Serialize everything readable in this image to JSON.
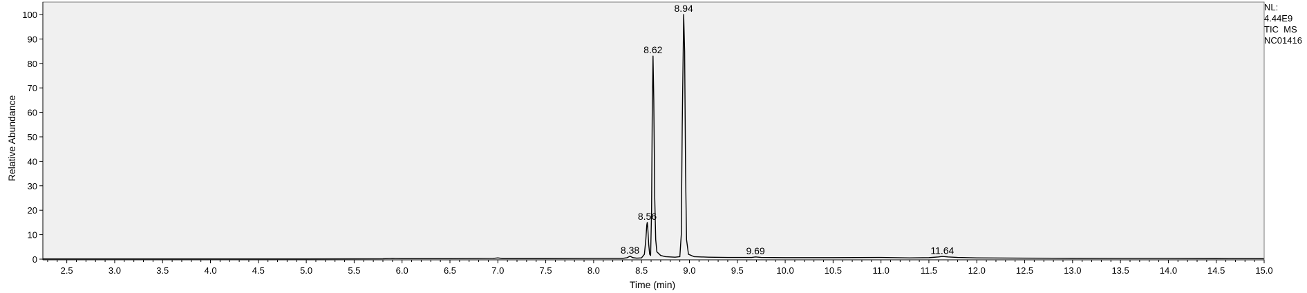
{
  "info_panel": {
    "nl_label": "NL:",
    "nl_value": "4.44E9",
    "scan_type": "TIC  MS",
    "sample_id": "NC01416"
  },
  "chart_data": {
    "type": "line",
    "xlabel": "Time (min)",
    "ylabel": "Relative Abundance",
    "xlim": [
      2.25,
      15.0
    ],
    "ylim": [
      0,
      100
    ],
    "xticks": [
      2.5,
      3.0,
      3.5,
      4.0,
      4.5,
      5.0,
      5.5,
      6.0,
      6.5,
      7.0,
      7.5,
      8.0,
      8.5,
      9.0,
      9.5,
      10.0,
      10.5,
      11.0,
      11.5,
      12.0,
      12.5,
      13.0,
      13.5,
      14.0,
      14.5,
      15.0
    ],
    "xtick_labels": [
      "2.5",
      "3.0",
      "3.5",
      "4.0",
      "4.5",
      "5.0",
      "5.5",
      "6.0",
      "6.5",
      "7.0",
      "7.5",
      "8.0",
      "8.5",
      "9.0",
      "9.5",
      "10.0",
      "10.5",
      "11.0",
      "11.5",
      "12.0",
      "12.5",
      "13.0",
      "13.5",
      "14.0",
      "14.5",
      "15.0"
    ],
    "yticks": [
      0,
      10,
      20,
      30,
      40,
      50,
      60,
      70,
      80,
      90,
      100
    ],
    "ytick_labels": [
      "0",
      "10",
      "20",
      "30",
      "40",
      "50",
      "60",
      "70",
      "80",
      "90",
      "100"
    ],
    "grid": false,
    "background": "#f0f0f0",
    "line_color": "#000000",
    "peaks": [
      {
        "label": "8.38",
        "x": 8.38,
        "y": 1.2
      },
      {
        "label": "8.56",
        "x": 8.56,
        "y": 15
      },
      {
        "label": "8.62",
        "x": 8.62,
        "y": 83
      },
      {
        "label": "8.94",
        "x": 8.94,
        "y": 100
      },
      {
        "label": "9.69",
        "x": 9.69,
        "y": 0.8
      },
      {
        "label": "11.64",
        "x": 11.64,
        "y": 1.0
      }
    ],
    "series": [
      {
        "values": [
          [
            2.25,
            0.1
          ],
          [
            3.0,
            0.1
          ],
          [
            4.0,
            0.1
          ],
          [
            5.0,
            0.1
          ],
          [
            5.8,
            0.15
          ],
          [
            5.9,
            0.3
          ],
          [
            6.0,
            0.2
          ],
          [
            6.5,
            0.2
          ],
          [
            6.95,
            0.3
          ],
          [
            7.0,
            0.5
          ],
          [
            7.05,
            0.25
          ],
          [
            7.5,
            0.25
          ],
          [
            8.0,
            0.3
          ],
          [
            8.3,
            0.3
          ],
          [
            8.35,
            0.6
          ],
          [
            8.38,
            1.2
          ],
          [
            8.41,
            0.6
          ],
          [
            8.45,
            0.4
          ],
          [
            8.5,
            0.5
          ],
          [
            8.53,
            2.0
          ],
          [
            8.545,
            8.0
          ],
          [
            8.555,
            14.0
          ],
          [
            8.56,
            15.0
          ],
          [
            8.565,
            13.0
          ],
          [
            8.575,
            6.0
          ],
          [
            8.585,
            2.0
          ],
          [
            8.595,
            1.5
          ],
          [
            8.605,
            20.0
          ],
          [
            8.612,
            60.0
          ],
          [
            8.62,
            83.0
          ],
          [
            8.628,
            65.0
          ],
          [
            8.638,
            25.0
          ],
          [
            8.648,
            8.0
          ],
          [
            8.66,
            3.0
          ],
          [
            8.7,
            1.5
          ],
          [
            8.75,
            1.0
          ],
          [
            8.85,
            0.8
          ],
          [
            8.9,
            1.0
          ],
          [
            8.915,
            10.0
          ],
          [
            8.925,
            55.0
          ],
          [
            8.94,
            100.0
          ],
          [
            8.95,
            85.0
          ],
          [
            8.96,
            35.0
          ],
          [
            8.97,
            8.0
          ],
          [
            8.99,
            2.0
          ],
          [
            9.05,
            1.0
          ],
          [
            9.2,
            0.8
          ],
          [
            9.4,
            0.7
          ],
          [
            9.65,
            0.7
          ],
          [
            9.69,
            0.9
          ],
          [
            9.75,
            0.7
          ],
          [
            10.0,
            0.6
          ],
          [
            10.5,
            0.6
          ],
          [
            11.0,
            0.7
          ],
          [
            11.3,
            0.5
          ],
          [
            11.5,
            0.6
          ],
          [
            11.6,
            0.9
          ],
          [
            11.64,
            1.1
          ],
          [
            11.7,
            0.9
          ],
          [
            11.8,
            0.7
          ],
          [
            12.0,
            0.5
          ],
          [
            12.5,
            0.4
          ],
          [
            13.0,
            0.35
          ],
          [
            13.5,
            0.3
          ],
          [
            14.0,
            0.3
          ],
          [
            14.5,
            0.25
          ],
          [
            15.0,
            0.2
          ]
        ]
      }
    ]
  }
}
